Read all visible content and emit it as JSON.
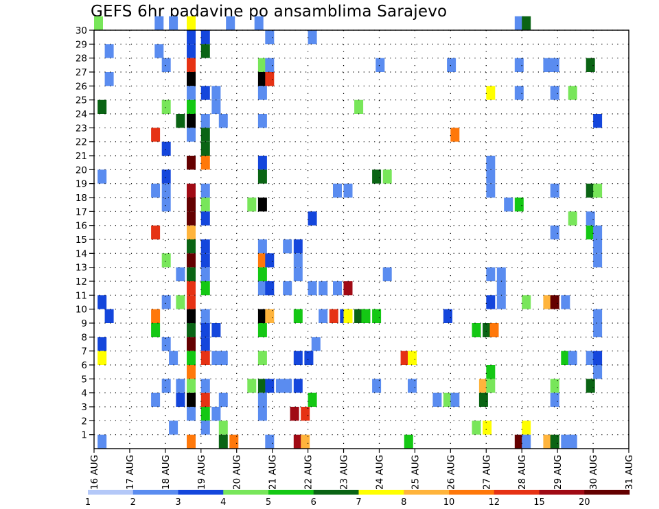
{
  "title": "GEFS 6hr padavine po ansamblima Sarajevo",
  "chart_data": {
    "type": "heatmap",
    "x": [
      "16 AUG",
      "17 AUG",
      "18 AUG",
      "19 AUG",
      "20 AUG",
      "21 AUG",
      "22 AUG",
      "23 AUG",
      "24 AUG",
      "25 AUG",
      "26 AUG",
      "27 AUG",
      "28 AUG",
      "29 AUG",
      "30 AUG",
      "31 AUG"
    ],
    "y": [
      "1",
      "2",
      "3",
      "4",
      "5",
      "6",
      "7",
      "8",
      "9",
      "10",
      "11",
      "12",
      "13",
      "14",
      "15",
      "16",
      "17",
      "18",
      "19",
      "20",
      "21",
      "22",
      "23",
      "24",
      "25",
      "26",
      "27",
      "28",
      "29",
      "30"
    ],
    "grid": true,
    "colorbar": {
      "labels": [
        "1",
        "2",
        "3",
        "4",
        "5",
        "6",
        "7",
        "8",
        "10",
        "12",
        "15",
        "20"
      ],
      "colors": [
        "#b4c8f8",
        "#5a8cf0",
        "#1446dc",
        "#78e65a",
        "#14c814",
        "#0a6414",
        "#ffff00",
        "#ffb43c",
        "#ff780a",
        "#e63214",
        "#a00a14",
        "#640000"
      ]
    },
    "cells": [
      [
        20.0,
        30,
        3
      ],
      [
        21.7,
        30,
        1
      ],
      [
        22.1,
        30,
        1
      ],
      [
        22.6,
        30,
        6
      ],
      [
        23.7,
        30,
        1
      ],
      [
        24.5,
        30,
        1
      ],
      [
        31.8,
        30,
        1
      ],
      [
        32.0,
        30,
        5
      ],
      [
        22.6,
        29,
        2
      ],
      [
        23.0,
        29,
        2
      ],
      [
        24.8,
        29,
        1
      ],
      [
        26.0,
        29,
        1
      ],
      [
        20.3,
        28,
        1
      ],
      [
        21.7,
        28,
        1
      ],
      [
        22.6,
        28,
        2
      ],
      [
        23.0,
        28,
        5
      ],
      [
        21.9,
        27,
        1
      ],
      [
        22.6,
        27,
        9
      ],
      [
        24.6,
        27,
        3
      ],
      [
        24.8,
        27,
        1
      ],
      [
        27.9,
        27,
        1
      ],
      [
        29.9,
        27,
        1
      ],
      [
        31.8,
        27,
        1
      ],
      [
        32.6,
        27,
        1
      ],
      [
        32.8,
        27,
        1
      ],
      [
        33.8,
        27,
        5
      ],
      [
        20.3,
        26,
        1
      ],
      [
        22.6,
        26,
        12
      ],
      [
        24.6,
        26,
        12
      ],
      [
        24.8,
        26,
        9
      ],
      [
        22.6,
        25,
        1
      ],
      [
        23.0,
        25,
        2
      ],
      [
        23.3,
        25,
        1
      ],
      [
        24.6,
        25,
        1
      ],
      [
        31.0,
        25,
        6
      ],
      [
        31.8,
        25,
        1
      ],
      [
        32.8,
        25,
        1
      ],
      [
        33.3,
        25,
        3
      ],
      [
        20.1,
        24,
        5
      ],
      [
        21.9,
        24,
        3
      ],
      [
        22.6,
        24,
        4
      ],
      [
        23.3,
        24,
        1
      ],
      [
        27.3,
        24,
        3
      ],
      [
        22.3,
        23,
        5
      ],
      [
        22.6,
        23,
        12
      ],
      [
        23.0,
        23,
        1
      ],
      [
        23.5,
        23,
        1
      ],
      [
        24.6,
        23,
        1
      ],
      [
        34.0,
        23,
        2
      ],
      [
        21.6,
        22,
        9
      ],
      [
        22.6,
        22,
        1
      ],
      [
        23.0,
        22,
        5
      ],
      [
        30.0,
        22,
        8
      ],
      [
        21.9,
        21,
        2
      ],
      [
        23.0,
        21,
        5
      ],
      [
        22.6,
        20,
        11
      ],
      [
        23.0,
        20,
        8
      ],
      [
        24.6,
        20,
        2
      ],
      [
        31.0,
        20,
        1
      ],
      [
        20.1,
        19,
        1
      ],
      [
        21.9,
        19,
        2
      ],
      [
        24.6,
        19,
        5
      ],
      [
        27.8,
        19,
        5
      ],
      [
        28.1,
        19,
        3
      ],
      [
        31.0,
        19,
        1
      ],
      [
        21.6,
        18,
        1
      ],
      [
        21.9,
        18,
        1
      ],
      [
        22.6,
        18,
        10
      ],
      [
        23.0,
        18,
        1
      ],
      [
        26.7,
        18,
        1
      ],
      [
        27.0,
        18,
        1
      ],
      [
        31.0,
        18,
        1
      ],
      [
        32.8,
        18,
        1
      ],
      [
        33.8,
        18,
        5
      ],
      [
        34.0,
        18,
        3
      ],
      [
        21.9,
        17,
        1
      ],
      [
        22.6,
        17,
        11
      ],
      [
        23.0,
        17,
        3
      ],
      [
        24.3,
        17,
        3
      ],
      [
        24.6,
        17,
        12
      ],
      [
        31.5,
        17,
        1
      ],
      [
        31.8,
        17,
        4
      ],
      [
        22.6,
        16,
        11
      ],
      [
        23.0,
        16,
        2
      ],
      [
        26.0,
        16,
        2
      ],
      [
        33.3,
        16,
        3
      ],
      [
        33.8,
        16,
        1
      ],
      [
        21.6,
        15,
        9
      ],
      [
        22.6,
        15,
        7
      ],
      [
        32.8,
        15,
        1
      ],
      [
        33.8,
        15,
        4
      ],
      [
        34.0,
        15,
        1
      ],
      [
        22.6,
        14,
        5
      ],
      [
        23.0,
        14,
        2
      ],
      [
        24.6,
        14,
        1
      ],
      [
        25.3,
        14,
        1
      ],
      [
        25.6,
        14,
        2
      ],
      [
        34.0,
        14,
        1
      ],
      [
        21.9,
        13,
        3
      ],
      [
        22.6,
        13,
        11
      ],
      [
        23.0,
        13,
        2
      ],
      [
        24.6,
        13,
        8
      ],
      [
        24.8,
        13,
        2
      ],
      [
        25.6,
        13,
        1
      ],
      [
        34.0,
        13,
        1
      ],
      [
        22.3,
        12,
        1
      ],
      [
        22.6,
        12,
        5
      ],
      [
        23.0,
        12,
        1
      ],
      [
        24.6,
        12,
        4
      ],
      [
        25.6,
        12,
        1
      ],
      [
        28.1,
        12,
        1
      ],
      [
        31.0,
        12,
        1
      ],
      [
        31.3,
        12,
        1
      ],
      [
        22.6,
        11,
        9
      ],
      [
        23.0,
        11,
        4
      ],
      [
        24.6,
        11,
        1
      ],
      [
        24.8,
        11,
        2
      ],
      [
        25.3,
        11,
        1
      ],
      [
        26.0,
        11,
        1
      ],
      [
        26.3,
        11,
        1
      ],
      [
        26.7,
        11,
        1
      ],
      [
        27.0,
        11,
        10
      ],
      [
        31.3,
        11,
        1
      ],
      [
        20.1,
        10,
        2
      ],
      [
        21.9,
        10,
        1
      ],
      [
        22.3,
        10,
        3
      ],
      [
        22.6,
        10,
        9
      ],
      [
        31.0,
        10,
        2
      ],
      [
        31.3,
        10,
        1
      ],
      [
        32.0,
        10,
        3
      ],
      [
        32.6,
        10,
        7
      ],
      [
        32.8,
        10,
        11
      ],
      [
        33.1,
        10,
        1
      ],
      [
        20.3,
        9,
        2
      ],
      [
        21.6,
        9,
        8
      ],
      [
        22.6,
        9,
        12
      ],
      [
        23.0,
        9,
        1
      ],
      [
        24.6,
        9,
        12
      ],
      [
        24.8,
        9,
        7
      ],
      [
        25.6,
        9,
        4
      ],
      [
        26.3,
        9,
        1
      ],
      [
        26.6,
        9,
        9
      ],
      [
        26.9,
        9,
        2
      ],
      [
        27.0,
        9,
        6
      ],
      [
        27.3,
        9,
        5
      ],
      [
        27.5,
        9,
        4
      ],
      [
        27.8,
        9,
        4
      ],
      [
        29.8,
        9,
        2
      ],
      [
        34.0,
        9,
        1
      ],
      [
        21.6,
        8,
        4
      ],
      [
        22.6,
        8,
        5
      ],
      [
        23.0,
        8,
        2
      ],
      [
        23.3,
        8,
        2
      ],
      [
        24.6,
        8,
        4
      ],
      [
        30.6,
        8,
        4
      ],
      [
        30.9,
        8,
        5
      ],
      [
        31.1,
        8,
        8
      ],
      [
        34.0,
        8,
        1
      ],
      [
        20.1,
        7,
        2
      ],
      [
        21.9,
        7,
        1
      ],
      [
        22.6,
        7,
        11
      ],
      [
        23.0,
        7,
        2
      ],
      [
        26.1,
        7,
        1
      ],
      [
        20.1,
        6,
        6
      ],
      [
        22.1,
        6,
        1
      ],
      [
        22.6,
        6,
        4
      ],
      [
        23.0,
        6,
        9
      ],
      [
        23.3,
        6,
        1
      ],
      [
        23.5,
        6,
        1
      ],
      [
        24.6,
        6,
        3
      ],
      [
        25.6,
        6,
        2
      ],
      [
        25.9,
        6,
        2
      ],
      [
        28.6,
        6,
        9
      ],
      [
        28.8,
        6,
        6
      ],
      [
        33.1,
        6,
        4
      ],
      [
        33.3,
        6,
        1
      ],
      [
        33.8,
        6,
        1
      ],
      [
        34.0,
        6,
        2
      ],
      [
        22.6,
        5,
        8
      ],
      [
        31.0,
        5,
        4
      ],
      [
        34.0,
        5,
        1
      ],
      [
        21.9,
        4,
        1
      ],
      [
        22.3,
        4,
        1
      ],
      [
        22.6,
        4,
        3
      ],
      [
        23.0,
        4,
        1
      ],
      [
        24.3,
        4,
        3
      ],
      [
        24.6,
        4,
        5
      ],
      [
        24.8,
        4,
        2
      ],
      [
        25.1,
        4,
        1
      ],
      [
        25.3,
        4,
        1
      ],
      [
        25.6,
        4,
        2
      ],
      [
        27.8,
        4,
        1
      ],
      [
        28.8,
        4,
        1
      ],
      [
        30.8,
        4,
        7
      ],
      [
        31.0,
        4,
        3
      ],
      [
        32.8,
        4,
        3
      ],
      [
        33.8,
        4,
        5
      ],
      [
        21.6,
        3,
        1
      ],
      [
        22.3,
        3,
        2
      ],
      [
        22.6,
        3,
        12
      ],
      [
        23.0,
        3,
        9
      ],
      [
        23.5,
        3,
        1
      ],
      [
        24.6,
        3,
        1
      ],
      [
        26.0,
        3,
        4
      ],
      [
        29.5,
        3,
        1
      ],
      [
        29.8,
        3,
        3
      ],
      [
        30.0,
        3,
        1
      ],
      [
        30.8,
        3,
        5
      ],
      [
        32.8,
        3,
        1
      ],
      [
        22.6,
        2,
        1
      ],
      [
        23.0,
        2,
        4
      ],
      [
        23.3,
        2,
        1
      ],
      [
        24.6,
        2,
        1
      ],
      [
        25.5,
        2,
        10
      ],
      [
        25.8,
        2,
        9
      ],
      [
        22.1,
        1,
        1
      ],
      [
        23.0,
        1,
        1
      ],
      [
        23.5,
        1,
        3
      ],
      [
        30.6,
        1,
        3
      ],
      [
        30.9,
        1,
        6
      ],
      [
        32.0,
        1,
        6
      ],
      [
        20.1,
        0,
        1
      ],
      [
        22.6,
        0,
        8
      ],
      [
        23.5,
        0,
        5
      ],
      [
        23.8,
        0,
        8
      ],
      [
        24.8,
        0,
        1
      ],
      [
        25.6,
        0,
        10
      ],
      [
        25.8,
        0,
        7
      ],
      [
        28.7,
        0,
        4
      ],
      [
        31.8,
        0,
        11
      ],
      [
        32.0,
        0,
        1
      ],
      [
        32.6,
        0,
        7
      ],
      [
        32.8,
        0,
        5
      ],
      [
        33.1,
        0,
        1
      ],
      [
        33.3,
        0,
        1
      ]
    ]
  }
}
